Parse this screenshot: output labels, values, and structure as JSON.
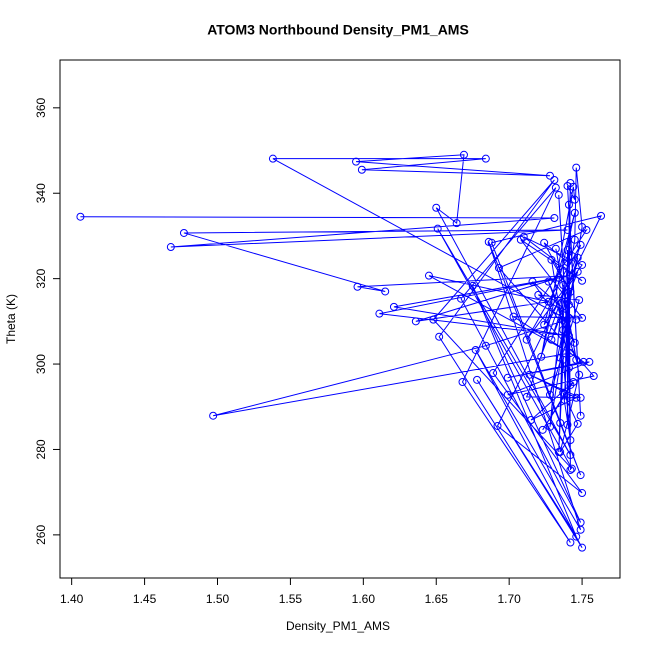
{
  "chart_data": {
    "type": "scatter_line",
    "title": "ATOM3 Northbound Density_PM1_AMS",
    "x_label": "Density_PM1_AMS",
    "y_label": "Theta (K)",
    "xlim": [
      1.392,
      1.776
    ],
    "ylim": [
      249.9,
      371.2
    ],
    "xticks": [
      {
        "value": 1.4,
        "label": "1.40"
      },
      {
        "value": 1.45,
        "label": "1.45"
      },
      {
        "value": 1.5,
        "label": "1.50"
      },
      {
        "value": 1.55,
        "label": "1.55"
      },
      {
        "value": 1.6,
        "label": "1.60"
      },
      {
        "value": 1.65,
        "label": "1.65"
      },
      {
        "value": 1.7,
        "label": "1.70"
      },
      {
        "value": 1.75,
        "label": "1.75"
      }
    ],
    "yticks": [
      260,
      280,
      300,
      320,
      340,
      360
    ],
    "color": "#0000ff",
    "x": [
      1.406,
      1.731,
      1.468,
      1.74,
      1.477,
      1.615,
      1.596,
      1.742,
      1.611,
      1.741,
      1.621,
      1.734,
      1.636,
      1.727,
      1.645,
      1.742,
      1.497,
      1.684,
      1.74,
      1.538,
      1.684,
      1.599,
      1.728,
      1.595,
      1.669,
      1.664,
      1.65,
      1.742,
      1.651,
      1.743,
      1.648,
      1.731,
      1.652,
      1.742,
      1.668,
      1.732,
      1.667,
      1.749,
      1.675,
      1.746,
      1.678,
      1.75,
      1.677,
      1.749,
      1.686,
      1.749,
      1.688,
      1.763,
      1.692,
      1.75,
      1.689,
      1.753,
      1.693,
      1.758,
      1.699,
      1.755,
      1.699,
      1.751,
      1.703,
      1.75,
      1.708,
      1.75,
      1.71,
      1.75,
      1.712,
      1.749,
      1.712,
      1.749,
      1.714,
      1.746,
      1.715,
      1.744,
      1.723,
      1.742,
      1.734,
      1.741,
      1.729,
      1.742,
      1.724,
      1.74,
      1.735,
      1.741,
      1.738,
      1.742,
      1.74,
      1.74,
      1.742,
      1.741,
      1.749,
      1.74,
      1.745,
      1.744,
      1.722,
      1.745,
      1.724,
      1.747,
      1.729,
      1.747,
      1.728,
      1.748,
      1.72,
      1.746,
      1.716,
      1.745,
      1.727,
      1.746,
      1.732,
      1.748,
      1.735,
      1.747,
      1.737,
      1.742,
      1.737,
      1.734,
      1.737,
      1.735,
      1.737,
      1.728,
      1.75,
      1.746,
      1.745,
      1.743
    ],
    "values": [
      334.5,
      334.2,
      327.4,
      331.4,
      330.7,
      317.0,
      318.1,
      320.7,
      311.8,
      306.6,
      313.4,
      320.2,
      310.0,
      314.6,
      320.7,
      302.6,
      287.9,
      304.3,
      310.4,
      348.1,
      348.1,
      345.5,
      344.1,
      347.4,
      349.0,
      333.0,
      336.6,
      278.7,
      331.7,
      275.5,
      310.4,
      343.1,
      306.4,
      258.2,
      295.8,
      341.3,
      315.3,
      262.9,
      318.3,
      259.6,
      296.3,
      257.0,
      303.3,
      261.2,
      328.6,
      274.0,
      328.4,
      334.7,
      285.5,
      269.8,
      297.9,
      331.4,
      322.5,
      297.2,
      292.8,
      300.5,
      296.8,
      300.5,
      311.1,
      310.8,
      329.1,
      319.5,
      329.8,
      323.2,
      305.7,
      327.9,
      292.3,
      292.1,
      297.5,
      292.1,
      286.9,
      295.8,
      284.6,
      295.1,
      339.6,
      299.1,
      324.4,
      316.9,
      328.4,
      323.9,
      301.5,
      313.9,
      291.6,
      342.4,
      285.8,
      326.7,
      275.2,
      337.3,
      287.9,
      341.7,
      338.5,
      341.5,
      301.7,
      335.4,
      309.2,
      321.6,
      305.7,
      324.9,
      292.8,
      315.0,
      316.2,
      310.4,
      319.3,
      305.0,
      319.3,
      301.0,
      327.0,
      297.5,
      279.4,
      286.0,
      293.3,
      282.2,
      301.0,
      279.4,
      308.0,
      286.2,
      318.5,
      285.3,
      332.1,
      346.0,
      329.1,
      325.3
    ]
  }
}
